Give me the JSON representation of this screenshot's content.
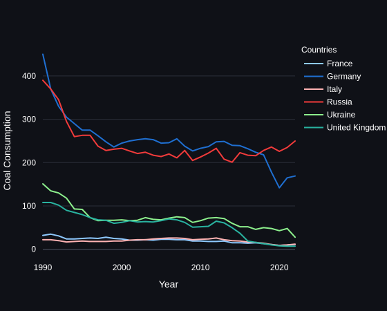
{
  "chart_data": {
    "type": "line",
    "title": "",
    "xlabel": "Year",
    "ylabel": "Coal Consumption",
    "xlim": [
      1990,
      2022
    ],
    "ylim": [
      -18,
      470
    ],
    "x_ticks": [
      1990,
      2000,
      2010,
      2020
    ],
    "y_ticks": [
      0,
      100,
      200,
      300,
      400
    ],
    "grid": true,
    "legend": {
      "title": "Countries",
      "placement": "right"
    },
    "x": [
      1990,
      1991,
      1992,
      1993,
      1994,
      1995,
      1996,
      1997,
      1998,
      1999,
      2000,
      2001,
      2002,
      2003,
      2004,
      2005,
      2006,
      2007,
      2008,
      2009,
      2010,
      2011,
      2012,
      2013,
      2014,
      2015,
      2016,
      2017,
      2018,
      2019,
      2020,
      2021,
      2022
    ],
    "series": [
      {
        "name": "France",
        "color": "#8ec9ff",
        "values": [
          32,
          35,
          31,
          24,
          24,
          25,
          26,
          25,
          28,
          25,
          24,
          21,
          21,
          22,
          21,
          23,
          23,
          22,
          22,
          19,
          19,
          18,
          18,
          19,
          15,
          15,
          14,
          15,
          13,
          11,
          9,
          10,
          11
        ]
      },
      {
        "name": "Germany",
        "color": "#1f6fd1",
        "values": [
          450,
          370,
          330,
          305,
          290,
          275,
          275,
          262,
          248,
          236,
          245,
          250,
          253,
          255,
          253,
          245,
          246,
          255,
          238,
          227,
          233,
          237,
          248,
          249,
          240,
          239,
          232,
          224,
          218,
          178,
          142,
          165,
          169
        ]
      },
      {
        "name": "Italy",
        "color": "#ffb3b3",
        "values": [
          22,
          22,
          20,
          17,
          18,
          19,
          18,
          18,
          18,
          19,
          19,
          21,
          22,
          22,
          24,
          25,
          26,
          26,
          25,
          22,
          23,
          24,
          26,
          22,
          20,
          19,
          17,
          16,
          14,
          11,
          9,
          10,
          12
        ]
      },
      {
        "name": "Russia",
        "color": "#f23b3b",
        "values": [
          390,
          370,
          345,
          295,
          260,
          263,
          263,
          238,
          228,
          231,
          233,
          227,
          221,
          224,
          217,
          214,
          220,
          211,
          228,
          205,
          213,
          222,
          233,
          208,
          201,
          223,
          217,
          216,
          228,
          236,
          226,
          235,
          250
        ]
      },
      {
        "name": "Ukraine",
        "color": "#8df08d",
        "values": [
          151,
          135,
          130,
          118,
          93,
          92,
          73,
          66,
          67,
          67,
          68,
          66,
          67,
          73,
          69,
          68,
          72,
          75,
          73,
          62,
          66,
          72,
          73,
          71,
          60,
          52,
          52,
          46,
          50,
          48,
          43,
          48,
          28
        ]
      },
      {
        "name": "United Kingdom",
        "color": "#29b3a0",
        "values": [
          108,
          108,
          102,
          90,
          85,
          80,
          73,
          68,
          67,
          60,
          62,
          66,
          63,
          64,
          63,
          66,
          70,
          68,
          62,
          51,
          52,
          53,
          65,
          61,
          50,
          37,
          19,
          16,
          13,
          10,
          8,
          7,
          7
        ]
      }
    ]
  }
}
